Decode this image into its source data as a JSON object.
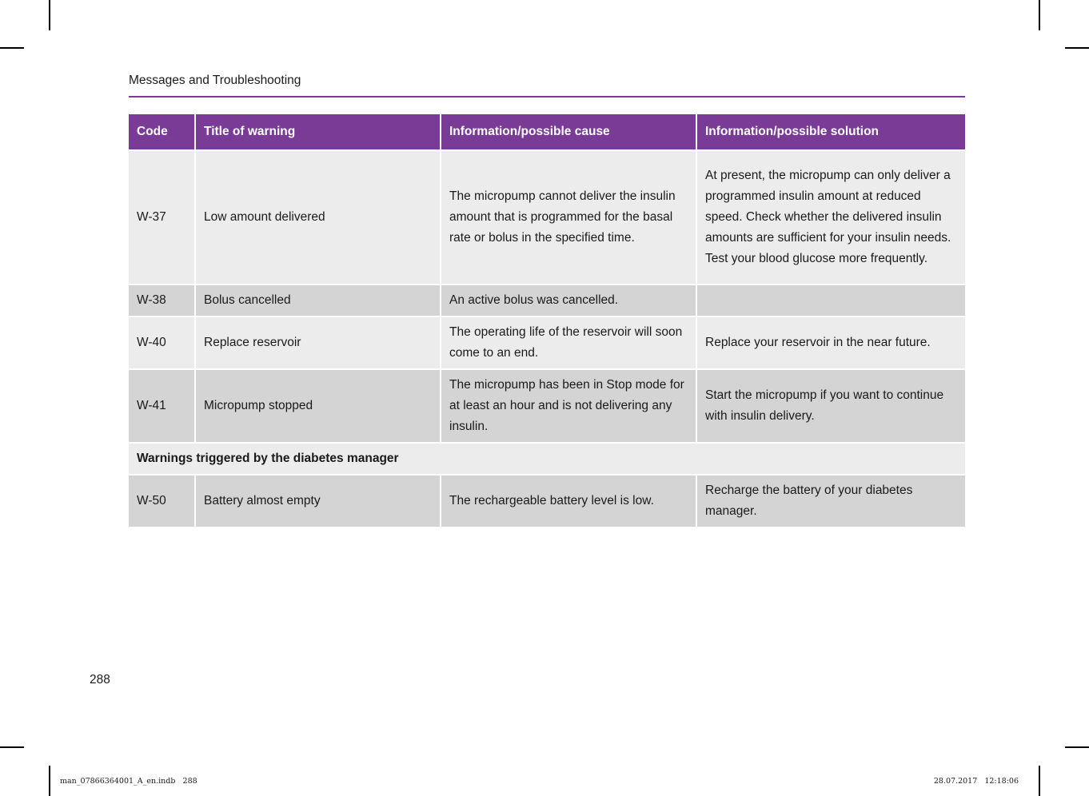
{
  "page": {
    "header": "Messages and Troubleshooting",
    "page_number": "288",
    "footer_left": "man_07866364001_A_en.indb   288",
    "footer_right": "28.07.2017   12:18:06"
  },
  "colors": {
    "accent_purple": "#7a3b97",
    "row_light": "#ececec",
    "row_dark": "#d4d4d4",
    "header_text": "#ffffff",
    "body_text": "#1a1a1a"
  },
  "table": {
    "columns": [
      "Code",
      "Title of warning",
      "Information/possible cause",
      "Information/possible solution"
    ],
    "rows": [
      {
        "code": "W-37",
        "title": "Low amount delivered",
        "cause": "The micropump cannot deliver the insulin amount that is programmed for the basal rate or bolus in the specified time.",
        "solution": "At present, the micropump can only deliver a programmed insulin amount at reduced speed. Check whether the delivered insulin amounts are sufficient for your insulin needs. Test your blood glucose more frequently."
      },
      {
        "code": "W-38",
        "title": "Bolus cancelled",
        "cause": "An active bolus was cancelled.",
        "solution": ""
      },
      {
        "code": "W-40",
        "title": "Replace reservoir",
        "cause": "The operating life of the reservoir will soon come to an end.",
        "solution": "Replace your reservoir in the near future."
      },
      {
        "code": "W-41",
        "title": "Micropump stopped",
        "cause": "The micropump has been in Stop mode for at least an hour and is not delivering any insulin.",
        "solution": "Start the micropump if you want to continue with insulin delivery."
      },
      {
        "label": "Warnings triggered by the diabetes manager"
      },
      {
        "code": "W-50",
        "title": "Battery almost empty",
        "cause": "The rechargeable battery level is low.",
        "solution": "Recharge the battery of your diabetes manager."
      }
    ]
  }
}
